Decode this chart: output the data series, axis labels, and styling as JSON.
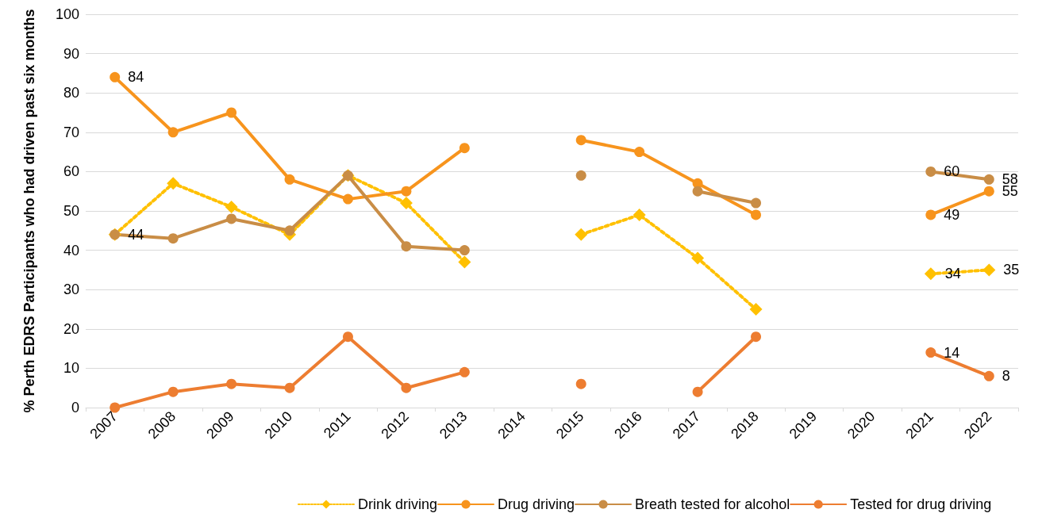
{
  "chart_data": {
    "type": "line",
    "ylabel": "% Perth EDRS Participants who had driven past six months",
    "categories": [
      "2007",
      "2008",
      "2009",
      "2010",
      "2011",
      "2012",
      "2013",
      "2014",
      "2015",
      "2016",
      "2017",
      "2018",
      "2019",
      "2020",
      "2021",
      "2022"
    ],
    "ylim": [
      0,
      100
    ],
    "yticks": [
      0,
      10,
      20,
      30,
      40,
      50,
      60,
      70,
      80,
      90,
      100
    ],
    "grid": "y",
    "legend": "bottom",
    "series": [
      {
        "name": "Drink driving",
        "color": "#ffc000",
        "marker": "diamond",
        "line_style": "dotted",
        "values": [
          44,
          57,
          51,
          44,
          59,
          52,
          37,
          null,
          44,
          49,
          38,
          25,
          null,
          null,
          34,
          35
        ],
        "value_labels": [
          null,
          null,
          null,
          null,
          null,
          null,
          null,
          null,
          null,
          null,
          null,
          null,
          null,
          null,
          "34",
          "35"
        ]
      },
      {
        "name": "Drug driving",
        "color": "#f7941d",
        "marker": "circle",
        "line_style": "solid",
        "values": [
          84,
          70,
          75,
          58,
          53,
          55,
          66,
          null,
          68,
          65,
          57,
          49,
          null,
          null,
          49,
          55
        ],
        "value_labels": [
          "84",
          null,
          null,
          null,
          null,
          null,
          null,
          null,
          null,
          null,
          null,
          null,
          null,
          null,
          "49",
          "55"
        ]
      },
      {
        "name": "Breath tested for alcohol",
        "color": "#c98d46",
        "marker": "circle",
        "line_style": "solid",
        "values": [
          44,
          43,
          48,
          45,
          59,
          41,
          40,
          null,
          59,
          null,
          55,
          52,
          null,
          null,
          60,
          58
        ],
        "value_labels": [
          "44",
          null,
          null,
          null,
          null,
          null,
          null,
          null,
          null,
          null,
          null,
          null,
          null,
          null,
          "60",
          "58"
        ]
      },
      {
        "name": "Tested for drug driving",
        "color": "#ed7d31",
        "marker": "circle",
        "line_style": "solid",
        "values": [
          0,
          4,
          6,
          5,
          18,
          5,
          9,
          null,
          6,
          null,
          4,
          18,
          null,
          null,
          14,
          8
        ],
        "value_labels": [
          null,
          null,
          null,
          null,
          null,
          null,
          null,
          null,
          null,
          null,
          null,
          null,
          null,
          null,
          "14",
          "8"
        ]
      }
    ]
  }
}
